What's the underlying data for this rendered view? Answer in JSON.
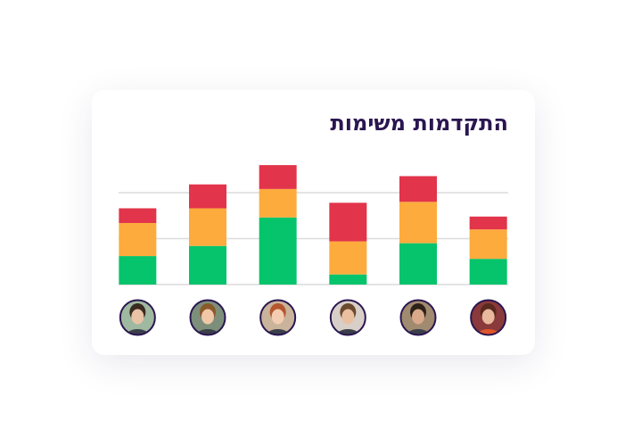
{
  "chart_data": {
    "type": "stacked-bar",
    "title": "התקדמות משימות",
    "categories": [
      null,
      null,
      null,
      null,
      null,
      null
    ],
    "series": [
      {
        "color": "#05c46b",
        "values": [
          31,
          42,
          73,
          11,
          45,
          28
        ]
      },
      {
        "color": "#fdab3d",
        "values": [
          36,
          41,
          31,
          36,
          45,
          32
        ]
      },
      {
        "color": "#e2344a",
        "values": [
          16,
          26,
          26,
          42,
          28,
          14
        ]
      }
    ],
    "ylim": [
      0,
      150
    ],
    "yticks": [
      0,
      50,
      100
    ],
    "grid": true
  }
}
